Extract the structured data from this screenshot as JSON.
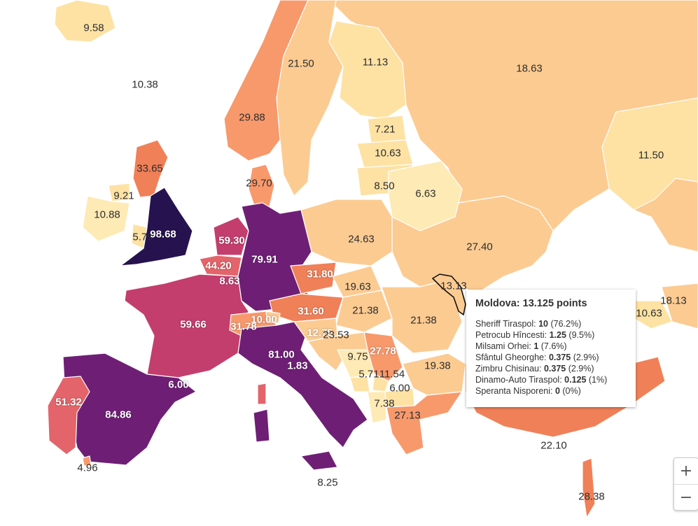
{
  "map": {
    "colors": {
      "sea": "#ffffff",
      "border": "#ffffff",
      "pale": "#fde2a4",
      "light": "#fccb92",
      "mid": "#f8996c",
      "orange": "#f08058",
      "salmon": "#e3646a",
      "magenta": "#c33e6d",
      "plum": "#8c2a78",
      "purple": "#6e1f75",
      "deep": "#25124e"
    },
    "countries": [
      {
        "name": "Iceland",
        "value": "9.58"
      },
      {
        "name": "Greenland sea area",
        "value": "10.38"
      },
      {
        "name": "Norway",
        "value": "29.88"
      },
      {
        "name": "Sweden",
        "value": "21.50"
      },
      {
        "name": "Finland",
        "value": "11.13"
      },
      {
        "name": "Russia",
        "value": "18.63"
      },
      {
        "name": "Kazakhstan",
        "value": "11.50"
      },
      {
        "name": "Estonia",
        "value": "7.21"
      },
      {
        "name": "Latvia",
        "value": "10.63"
      },
      {
        "name": "Lithuania",
        "value": "8.50"
      },
      {
        "name": "Belarus",
        "value": "6.63"
      },
      {
        "name": "Scotland",
        "value": "33.65"
      },
      {
        "name": "Northern Ireland",
        "value": "9.21"
      },
      {
        "name": "Ireland",
        "value": "10.88"
      },
      {
        "name": "Wales",
        "value": "5.79"
      },
      {
        "name": "England",
        "value": "98.68"
      },
      {
        "name": "Denmark",
        "value": "29.70"
      },
      {
        "name": "Netherlands",
        "value": "59.30"
      },
      {
        "name": "Belgium",
        "value": "44.20"
      },
      {
        "name": "Luxembourg",
        "value": "8.63"
      },
      {
        "name": "Germany",
        "value": "79.91"
      },
      {
        "name": "Poland",
        "value": "24.63"
      },
      {
        "name": "Ukraine",
        "value": "27.40"
      },
      {
        "name": "Czech Republic",
        "value": "31.80"
      },
      {
        "name": "Slovakia",
        "value": "19.63"
      },
      {
        "name": "Austria",
        "value": "31.60"
      },
      {
        "name": "Hungary",
        "value": "21.38"
      },
      {
        "name": "Romania",
        "value": "21.38"
      },
      {
        "name": "Moldova",
        "value": "13.13"
      },
      {
        "name": "France",
        "value": "59.66"
      },
      {
        "name": "Switzerland",
        "value": "31.78"
      },
      {
        "name": "Liechtenstein",
        "value": "10.00"
      },
      {
        "name": "Slovenia",
        "value": "12.75"
      },
      {
        "name": "Croatia",
        "value": "23.53"
      },
      {
        "name": "Bosnia",
        "value": "9.75"
      },
      {
        "name": "Serbia",
        "value": "27.78"
      },
      {
        "name": "Montenegro",
        "value": "5.71"
      },
      {
        "name": "Kosovo",
        "value": "11.54"
      },
      {
        "name": "North Macedonia",
        "value": "6.00"
      },
      {
        "name": "Albania",
        "value": "7.38"
      },
      {
        "name": "Bulgaria",
        "value": "19.38"
      },
      {
        "name": "Greece",
        "value": "27.13"
      },
      {
        "name": "Turkey",
        "value": "22.10"
      },
      {
        "name": "Georgia",
        "value": "10.63"
      },
      {
        "name": "Azerbaijan",
        "value": "18.13"
      },
      {
        "name": "Israel",
        "value": "28.38"
      },
      {
        "name": "Italy",
        "value": "81.00"
      },
      {
        "name": "San Marino",
        "value": "1.83"
      },
      {
        "name": "Malta",
        "value": "8.25"
      },
      {
        "name": "Spain",
        "value": "84.86"
      },
      {
        "name": "Andorra",
        "value": "6.00"
      },
      {
        "name": "Portugal",
        "value": "51.32"
      },
      {
        "name": "Gibraltar",
        "value": "4.96"
      }
    ]
  },
  "tooltip": {
    "title": "Moldova: 13.125 points",
    "rows": [
      {
        "team": "Sheriff Tiraspol:",
        "points": "10",
        "pct": "(76.2%)"
      },
      {
        "team": "Petrocub Hîncesti:",
        "points": "1.25",
        "pct": "(9.5%)"
      },
      {
        "team": "Milsami Orhei:",
        "points": "1",
        "pct": "(7.6%)"
      },
      {
        "team": "Sfântul Gheorghe:",
        "points": "0.375",
        "pct": "(2.9%)"
      },
      {
        "team": "Zimbru Chisinau:",
        "points": "0.375",
        "pct": "(2.9%)"
      },
      {
        "team": "Dinamo-Auto Tiraspol:",
        "points": "0.125",
        "pct": "(1%)"
      },
      {
        "team": "Speranta Nisporeni:",
        "points": "0",
        "pct": "(0%)"
      }
    ]
  },
  "zoom": {
    "in_label": "+",
    "out_label": "−"
  }
}
